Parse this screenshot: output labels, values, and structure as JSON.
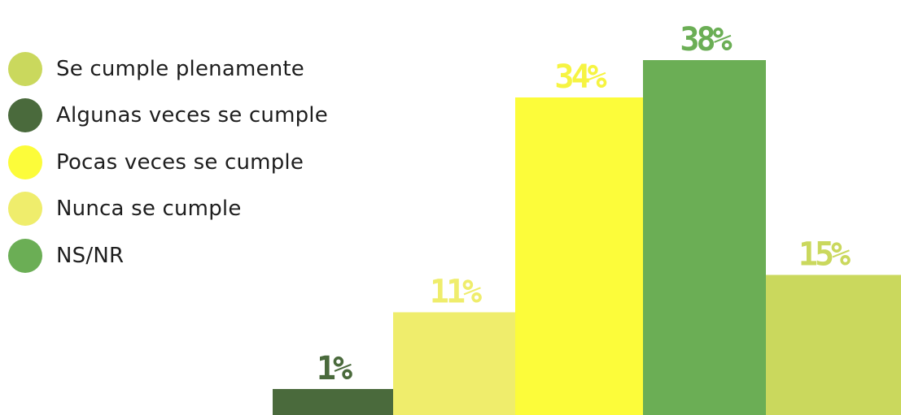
{
  "chart_data": {
    "type": "bar",
    "categories": [
      "Algunas veces se cumple",
      "Nunca se cumple",
      "Pocas veces se cumple",
      "NS/NR",
      "Se cumple plenamente"
    ],
    "values": [
      1,
      11,
      34,
      38,
      15
    ],
    "value_labels": [
      "1%",
      "11%",
      "34%",
      "38%",
      "15%"
    ],
    "colors": [
      "#4a6a3c",
      "#efed6c",
      "#fcfc3a",
      "#6bae55",
      "#cad85d"
    ],
    "label_colors": [
      "#4a6a3c",
      "#efed6c",
      "#f6f442",
      "#6bae55",
      "#cad85d"
    ],
    "ylim": [
      0,
      40
    ],
    "legend_position": "top-left",
    "title": "",
    "xlabel": "",
    "ylabel": ""
  },
  "legend": {
    "items": [
      {
        "label": "Se cumple plenamente",
        "color": "#cad85d"
      },
      {
        "label": "Algunas veces se cumple",
        "color": "#4a6a3c"
      },
      {
        "label": "Pocas veces se cumple",
        "color": "#fcfc3a"
      },
      {
        "label": "Nunca se cumple",
        "color": "#efed6c"
      },
      {
        "label": "NS/NR",
        "color": "#6bae55"
      }
    ]
  }
}
